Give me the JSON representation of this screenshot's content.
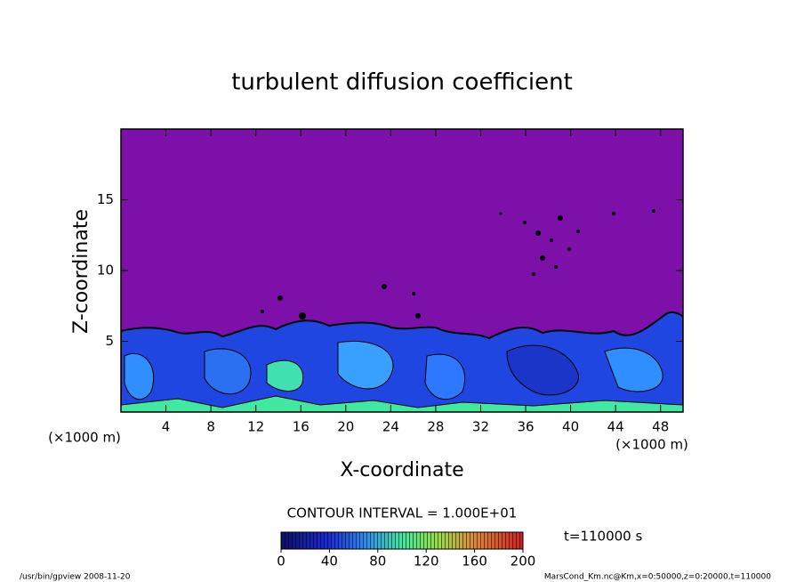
{
  "chart_data": {
    "type": "contour",
    "title": "turbulent diffusion coefficient",
    "x_label": "X-coordinate",
    "y_label": "Z-coordinate",
    "x_unit": "(×1000 m)",
    "y_unit": "(×1000 m)",
    "xlim": [
      0,
      50
    ],
    "xticks": [
      4,
      8,
      12,
      16,
      20,
      24,
      28,
      32,
      36,
      40,
      44,
      48
    ],
    "ylim": [
      0,
      20
    ],
    "yticks": [
      5,
      10,
      15
    ],
    "contour_interval": "CONTOUR INTERVAL = 1.000E+01",
    "time_label": "t=110000 s",
    "clim": [
      0,
      200
    ],
    "cticks": [
      0,
      40,
      80,
      120,
      160,
      200
    ],
    "footer_left": "/usr/bin/gpview  2008-11-20",
    "footer_right": "MarsCond_Km.nc@Km,x=0:50000,z=0:20000,t=110000"
  }
}
